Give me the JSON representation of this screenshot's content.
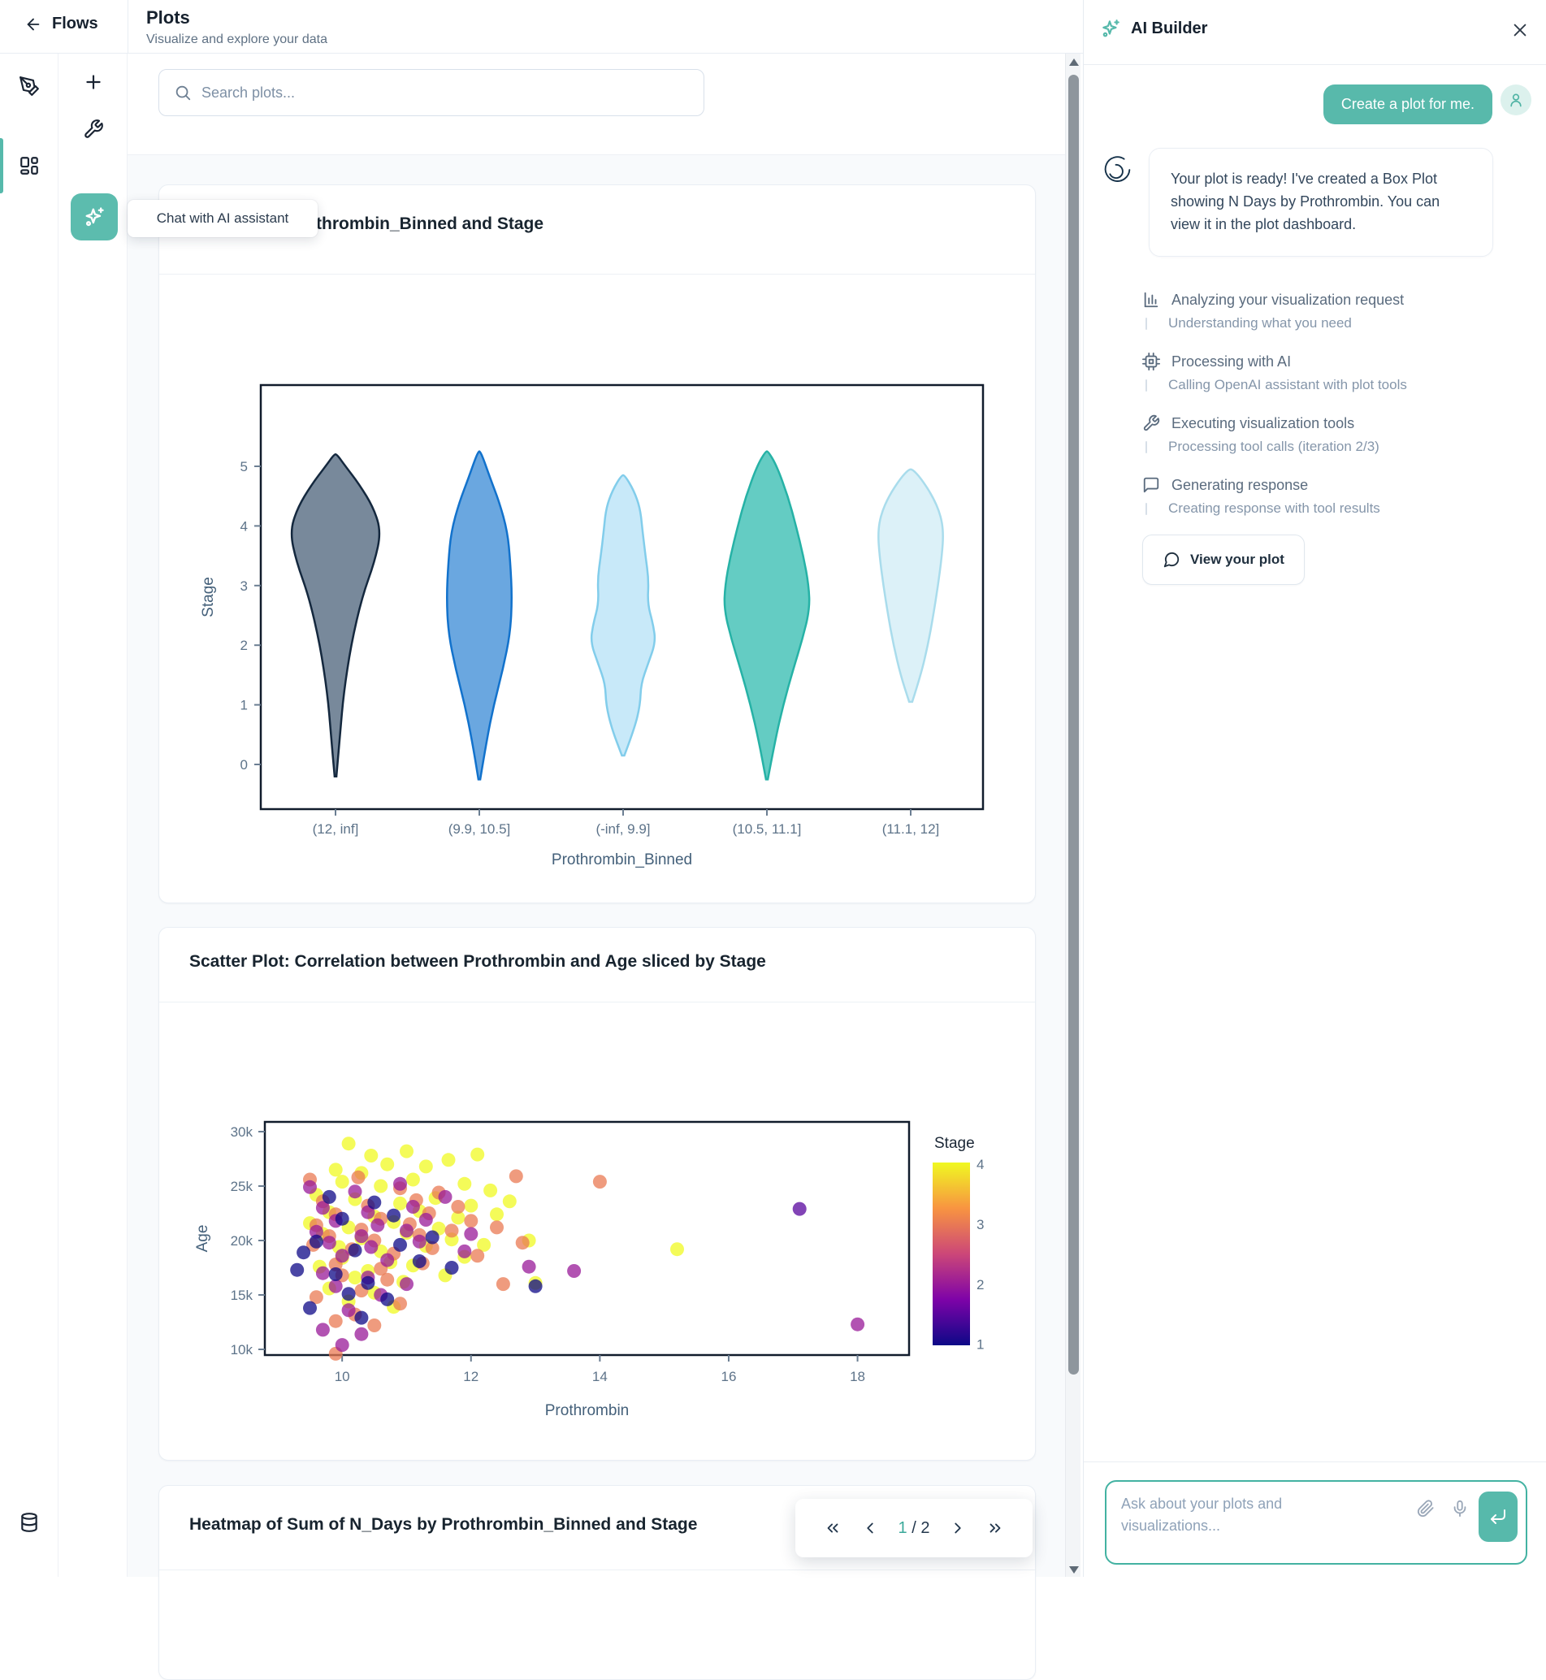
{
  "header": {
    "back_label": "Flows",
    "title": "Plots",
    "subtitle": "Visualize and explore your data"
  },
  "sidebar": {
    "tooltip": "Chat with AI assistant"
  },
  "search": {
    "placeholder": "Search plots..."
  },
  "pagination": {
    "current": "1",
    "separator": " / ",
    "total": "2"
  },
  "cards": {
    "violin_title_visible": "thrombin_Binned and Stage",
    "scatter_title": "Scatter Plot: Correlation between Prothrombin and Age sliced by Stage",
    "heatmap_title": "Heatmap of Sum of N_Days by Prothrombin_Binned and Stage"
  },
  "ai_panel": {
    "title": "AI Builder",
    "user_message": "Create a plot for me.",
    "assistant_message": "Your plot is ready! I've created a Box Plot showing N Days by Prothrombin. You can view it in the plot dashboard.",
    "steps": [
      {
        "title": "Analyzing your visualization request",
        "sub": "Understanding what you need"
      },
      {
        "title": "Processing with AI",
        "sub": "Calling OpenAI assistant with plot tools"
      },
      {
        "title": "Executing visualization tools",
        "sub": "Processing tool calls (iteration 2/3)"
      },
      {
        "title": "Generating response",
        "sub": "Creating response with tool results"
      }
    ],
    "view_plot_label": "View your plot",
    "input_placeholder": "Ask about your plots and visualizations..."
  },
  "colors": {
    "accent": "#56b9ab",
    "axis_text": "#5d7389",
    "axis_title": "#44607a",
    "axis_line": "#111c2c"
  },
  "chart_data": [
    {
      "type": "violin",
      "title_visible": "thrombin_Binned and Stage",
      "xlabel": "Prothrombin_Binned",
      "ylabel": "Stage",
      "yticks": [
        0,
        1,
        2,
        3,
        4,
        5
      ],
      "ylim": [
        -0.75,
        6.3
      ],
      "categories": [
        "(12, inf]",
        "(9.9, 10.5]",
        "(-inf, 9.9]",
        "(10.5, 11.1]",
        "(11.1, 12]"
      ],
      "violins": [
        {
          "label": "(12, inf]",
          "fill": "#6d7f92",
          "stroke": "#14283e",
          "max_halfwidth": 56,
          "profile": [
            [
              -0.2,
              0.02
            ],
            [
              0.5,
              0.1
            ],
            [
              1.2,
              0.18
            ],
            [
              2.0,
              0.34
            ],
            [
              2.8,
              0.58
            ],
            [
              3.4,
              0.86
            ],
            [
              3.9,
              1.0
            ],
            [
              4.3,
              0.84
            ],
            [
              4.7,
              0.52
            ],
            [
              5.0,
              0.22
            ],
            [
              5.2,
              0.03
            ]
          ]
        },
        {
          "label": "(9.9, 10.5]",
          "fill": "#5d9fdd",
          "stroke": "#1272cc",
          "max_halfwidth": 56,
          "profile": [
            [
              -0.25,
              0.02
            ],
            [
              0.4,
              0.16
            ],
            [
              1.0,
              0.32
            ],
            [
              1.6,
              0.52
            ],
            [
              2.2,
              0.68
            ],
            [
              2.8,
              0.72
            ],
            [
              3.4,
              0.68
            ],
            [
              3.9,
              0.62
            ],
            [
              4.4,
              0.44
            ],
            [
              4.8,
              0.24
            ],
            [
              5.25,
              0.03
            ]
          ]
        },
        {
          "label": "(-inf, 9.9]",
          "fill": "#c3e7f8",
          "stroke": "#82cdeb",
          "max_halfwidth": 50,
          "profile": [
            [
              0.15,
              0.03
            ],
            [
              0.6,
              0.28
            ],
            [
              1.0,
              0.42
            ],
            [
              1.35,
              0.44
            ],
            [
              1.7,
              0.62
            ],
            [
              2.05,
              0.8
            ],
            [
              2.35,
              0.74
            ],
            [
              2.7,
              0.6
            ],
            [
              3.1,
              0.63
            ],
            [
              3.5,
              0.55
            ],
            [
              3.9,
              0.48
            ],
            [
              4.3,
              0.42
            ],
            [
              4.6,
              0.26
            ],
            [
              4.85,
              0.04
            ]
          ]
        },
        {
          "label": "(10.5, 11.1]",
          "fill": "#57c8be",
          "stroke": "#26b2a6",
          "max_halfwidth": 56,
          "profile": [
            [
              -0.25,
              0.02
            ],
            [
              0.4,
              0.18
            ],
            [
              1.0,
              0.36
            ],
            [
              1.6,
              0.58
            ],
            [
              2.1,
              0.78
            ],
            [
              2.6,
              0.94
            ],
            [
              3.0,
              0.92
            ],
            [
              3.5,
              0.8
            ],
            [
              4.0,
              0.64
            ],
            [
              4.5,
              0.46
            ],
            [
              5.0,
              0.22
            ],
            [
              5.25,
              0.03
            ]
          ]
        },
        {
          "label": "(11.1, 12]",
          "fill": "#d9f0f7",
          "stroke": "#a9dcec",
          "max_halfwidth": 48,
          "profile": [
            [
              1.05,
              0.04
            ],
            [
              1.5,
              0.26
            ],
            [
              2.0,
              0.44
            ],
            [
              2.5,
              0.58
            ],
            [
              3.0,
              0.7
            ],
            [
              3.5,
              0.8
            ],
            [
              3.9,
              0.84
            ],
            [
              4.2,
              0.76
            ],
            [
              4.5,
              0.56
            ],
            [
              4.8,
              0.26
            ],
            [
              4.95,
              0.05
            ]
          ]
        }
      ]
    },
    {
      "type": "scatter",
      "title": "Scatter Plot: Correlation between Prothrombin and Age sliced by Stage",
      "xlabel": "Prothrombin",
      "ylabel": "Age",
      "xticks": [
        10,
        12,
        14,
        16,
        18
      ],
      "yticks_k": [
        10,
        15,
        20,
        25,
        30
      ],
      "ytick_labels": [
        "10k",
        "15k",
        "20k",
        "25k",
        "30k"
      ],
      "xlim": [
        8.8,
        18.8
      ],
      "ylim_k": [
        9.5,
        30.5
      ],
      "colorbar": {
        "title": "Stage",
        "ticks": [
          1,
          2,
          3,
          4
        ],
        "colormap": "plasma"
      },
      "point_radius": 8.5,
      "point_opacity": 0.75,
      "points": [
        [
          10.1,
          28.9,
          4
        ],
        [
          10.45,
          27.8,
          4
        ],
        [
          11.0,
          28.2,
          4
        ],
        [
          10.7,
          27.0,
          4
        ],
        [
          9.9,
          26.5,
          4
        ],
        [
          10.3,
          26.2,
          4
        ],
        [
          11.3,
          26.8,
          4
        ],
        [
          11.65,
          27.4,
          4
        ],
        [
          12.1,
          27.9,
          4
        ],
        [
          10.0,
          25.4,
          4
        ],
        [
          10.6,
          25.0,
          4
        ],
        [
          11.1,
          25.6,
          4
        ],
        [
          11.9,
          25.2,
          4
        ],
        [
          12.3,
          24.6,
          4
        ],
        [
          9.6,
          24.2,
          4
        ],
        [
          10.2,
          23.8,
          4
        ],
        [
          10.9,
          23.4,
          4
        ],
        [
          11.45,
          23.9,
          4
        ],
        [
          12.0,
          23.2,
          4
        ],
        [
          12.6,
          23.6,
          4
        ],
        [
          9.8,
          22.6,
          4
        ],
        [
          10.5,
          22.2,
          4
        ],
        [
          11.2,
          22.7,
          4
        ],
        [
          11.8,
          22.1,
          4
        ],
        [
          12.4,
          22.4,
          4
        ],
        [
          9.5,
          21.6,
          4
        ],
        [
          10.1,
          21.2,
          4
        ],
        [
          10.8,
          21.7,
          4
        ],
        [
          11.5,
          21.1,
          4
        ],
        [
          12.9,
          20.0,
          4
        ],
        [
          9.7,
          20.6,
          4
        ],
        [
          10.3,
          20.2,
          4
        ],
        [
          11.0,
          20.7,
          4
        ],
        [
          11.7,
          20.1,
          4
        ],
        [
          12.2,
          19.6,
          4
        ],
        [
          15.2,
          19.2,
          4
        ],
        [
          9.95,
          19.4,
          4
        ],
        [
          10.6,
          19.0,
          4
        ],
        [
          11.3,
          19.5,
          4
        ],
        [
          10.0,
          18.4,
          4
        ],
        [
          10.75,
          18.0,
          4
        ],
        [
          11.9,
          18.5,
          4
        ],
        [
          9.65,
          17.6,
          4
        ],
        [
          10.4,
          17.2,
          4
        ],
        [
          11.1,
          17.7,
          4
        ],
        [
          10.2,
          16.6,
          4
        ],
        [
          10.95,
          16.2,
          4
        ],
        [
          9.8,
          15.6,
          4
        ],
        [
          10.5,
          15.2,
          4
        ],
        [
          10.1,
          14.4,
          4
        ],
        [
          10.8,
          13.9,
          4
        ],
        [
          11.6,
          16.8,
          4
        ],
        [
          13.0,
          16.1,
          4
        ],
        [
          9.5,
          25.6,
          3
        ],
        [
          10.25,
          25.8,
          3
        ],
        [
          10.9,
          24.8,
          3
        ],
        [
          11.5,
          24.4,
          3
        ],
        [
          12.7,
          25.9,
          3
        ],
        [
          14.0,
          25.4,
          3
        ],
        [
          9.7,
          23.6,
          3
        ],
        [
          10.4,
          23.2,
          3
        ],
        [
          11.15,
          23.7,
          3
        ],
        [
          11.8,
          23.1,
          3
        ],
        [
          9.9,
          22.4,
          3
        ],
        [
          10.6,
          22.0,
          3
        ],
        [
          11.35,
          22.5,
          3
        ],
        [
          12.0,
          21.8,
          3
        ],
        [
          9.6,
          21.4,
          3
        ],
        [
          10.3,
          21.0,
          3
        ],
        [
          11.05,
          21.5,
          3
        ],
        [
          11.7,
          20.9,
          3
        ],
        [
          12.4,
          21.2,
          3
        ],
        [
          9.8,
          20.4,
          3
        ],
        [
          10.5,
          20.0,
          3
        ],
        [
          11.2,
          20.5,
          3
        ],
        [
          12.8,
          19.8,
          3
        ],
        [
          9.55,
          19.6,
          3
        ],
        [
          10.15,
          19.2,
          3
        ],
        [
          10.8,
          18.8,
          3
        ],
        [
          11.4,
          19.3,
          3
        ],
        [
          12.1,
          18.6,
          3
        ],
        [
          9.9,
          17.8,
          3
        ],
        [
          10.6,
          17.4,
          3
        ],
        [
          11.25,
          17.9,
          3
        ],
        [
          10.0,
          16.8,
          3
        ],
        [
          10.7,
          16.4,
          3
        ],
        [
          12.5,
          16.0,
          3
        ],
        [
          10.3,
          15.4,
          3
        ],
        [
          9.6,
          14.8,
          3
        ],
        [
          10.9,
          14.2,
          3
        ],
        [
          10.2,
          13.2,
          3
        ],
        [
          9.9,
          12.6,
          3
        ],
        [
          10.5,
          12.2,
          3
        ],
        [
          9.9,
          9.6,
          3
        ],
        [
          9.5,
          24.9,
          2
        ],
        [
          10.2,
          24.5,
          2
        ],
        [
          10.9,
          25.2,
          2
        ],
        [
          11.6,
          24.0,
          2
        ],
        [
          9.7,
          23.0,
          2
        ],
        [
          10.4,
          22.6,
          2
        ],
        [
          11.1,
          23.1,
          2
        ],
        [
          9.9,
          21.8,
          2
        ],
        [
          10.55,
          21.4,
          2
        ],
        [
          11.3,
          21.9,
          2
        ],
        [
          12.0,
          20.6,
          2
        ],
        [
          9.6,
          20.8,
          2
        ],
        [
          10.3,
          20.4,
          2
        ],
        [
          11.0,
          20.9,
          2
        ],
        [
          9.8,
          19.8,
          2
        ],
        [
          10.45,
          19.4,
          2
        ],
        [
          11.2,
          19.9,
          2
        ],
        [
          11.9,
          19.0,
          2
        ],
        [
          10.0,
          18.6,
          2
        ],
        [
          10.7,
          18.2,
          2
        ],
        [
          13.6,
          17.2,
          2
        ],
        [
          9.7,
          17.0,
          2
        ],
        [
          10.4,
          16.6,
          2
        ],
        [
          11.0,
          16.0,
          2
        ],
        [
          9.9,
          15.8,
          2
        ],
        [
          10.6,
          15.0,
          2
        ],
        [
          10.1,
          13.6,
          2
        ],
        [
          9.7,
          11.8,
          2
        ],
        [
          10.3,
          11.4,
          2
        ],
        [
          18.0,
          12.3,
          2
        ],
        [
          12.9,
          17.6,
          2
        ],
        [
          10.0,
          10.4,
          2
        ],
        [
          9.8,
          24.0,
          1
        ],
        [
          10.5,
          23.5,
          1
        ],
        [
          10.0,
          22.0,
          1
        ],
        [
          10.8,
          22.3,
          1
        ],
        [
          11.4,
          20.3,
          1
        ],
        [
          9.6,
          19.9,
          1
        ],
        [
          10.2,
          19.1,
          1
        ],
        [
          10.9,
          19.6,
          1
        ],
        [
          11.7,
          17.5,
          1
        ],
        [
          9.9,
          16.9,
          1
        ],
        [
          10.4,
          16.1,
          1
        ],
        [
          13.0,
          15.8,
          1
        ],
        [
          10.1,
          15.1,
          1
        ],
        [
          10.7,
          14.6,
          1
        ],
        [
          9.5,
          13.8,
          1
        ],
        [
          10.3,
          12.9,
          1
        ],
        [
          11.2,
          18.1,
          1
        ],
        [
          9.4,
          18.9,
          1
        ],
        [
          9.3,
          17.3,
          1
        ],
        [
          17.1,
          22.9,
          1.5
        ]
      ]
    },
    {
      "type": "heatmap",
      "title": "Heatmap of Sum of N_Days by Prothrombin_Binned and Stage"
    }
  ]
}
